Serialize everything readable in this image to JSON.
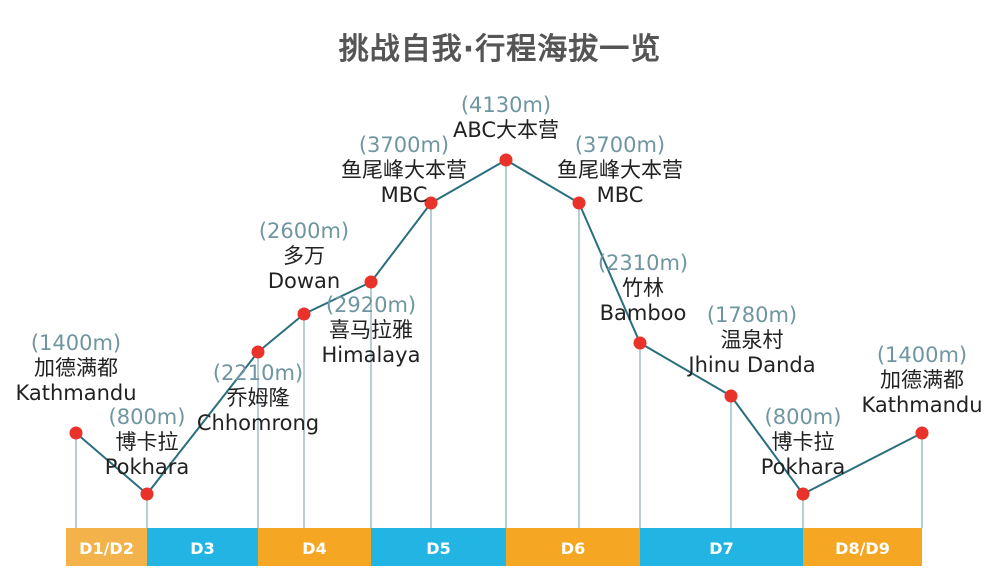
{
  "title": "挑战自我·行程海拔一览",
  "colors": {
    "line": "#2a6f7f",
    "point": "#e8322a",
    "drop": "#6aa2ad",
    "elevation_text": "#6f96a0",
    "label_text": "#222222",
    "day_orange": "#f5a623",
    "day_orange_light": "#f3b34a",
    "day_blue": "#22b5e3",
    "day_text": "#ffffff"
  },
  "chart_data": {
    "type": "line",
    "title": "挑战自我·行程海拔一览",
    "ylabel": "",
    "xlabel": "",
    "grid": false,
    "points": [
      {
        "elevation": "(1400m)",
        "name_cn": "加德满都",
        "name_en": "Kathmandu",
        "value": 1400
      },
      {
        "elevation": "(800m)",
        "name_cn": "博卡拉",
        "name_en": "Pokhara",
        "value": 800
      },
      {
        "elevation": "(2210m)",
        "name_cn": "乔姆隆",
        "name_en": "Chhomrong",
        "value": 2210
      },
      {
        "elevation": "(2600m)",
        "name_cn": "多万",
        "name_en": "Dowan",
        "value": 2600
      },
      {
        "elevation": "(2920m)",
        "name_cn": "喜马拉雅",
        "name_en": "Himalaya",
        "value": 2920
      },
      {
        "elevation": "(3700m)",
        "name_cn": "鱼尾峰大本营",
        "name_en": "MBC",
        "value": 3700
      },
      {
        "elevation": "(4130m)",
        "name_cn": "",
        "name_en": "ABC大本营",
        "value": 4130
      },
      {
        "elevation": "(3700m)",
        "name_cn": "鱼尾峰大本营",
        "name_en": "MBC",
        "value": 3700
      },
      {
        "elevation": "(2310m)",
        "name_cn": "竹林",
        "name_en": "Bamboo",
        "value": 2310
      },
      {
        "elevation": "(1780m)",
        "name_cn": "温泉村",
        "name_en": "Jhinu Danda",
        "value": 1780
      },
      {
        "elevation": "(800m)",
        "name_cn": "博卡拉",
        "name_en": "Pokhara",
        "value": 800
      },
      {
        "elevation": "(1400m)",
        "name_cn": "加德满都",
        "name_en": "Kathmandu",
        "value": 1400
      }
    ],
    "days": [
      {
        "label": "D1/D2",
        "color": "orange_light"
      },
      {
        "label": "D3",
        "color": "blue"
      },
      {
        "label": "D4",
        "color": "orange"
      },
      {
        "label": "D5",
        "color": "blue"
      },
      {
        "label": "D6",
        "color": "orange"
      },
      {
        "label": "D7",
        "color": "blue"
      },
      {
        "label": "D8/D9",
        "color": "orange"
      }
    ]
  }
}
